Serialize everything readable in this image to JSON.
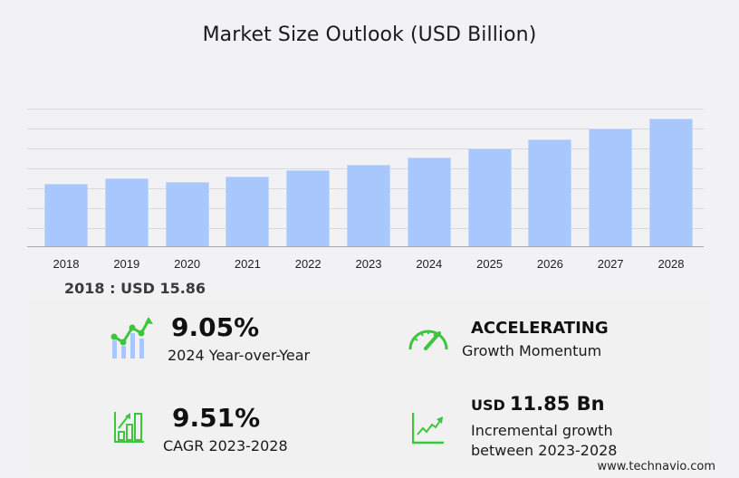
{
  "title": "Market Size Outlook (USD Billion)",
  "base_year_label": "2018 : USD  15.86",
  "stats": {
    "yoy": {
      "value": "9.05%",
      "label": "2024 Year-over-Year",
      "icon": "growth-chart-icon"
    },
    "momentum": {
      "value": "ACCELERATING",
      "label": "Growth Momentum",
      "icon": "speedometer-icon"
    },
    "cagr": {
      "value": "9.51%",
      "label": "CAGR 2023-2028",
      "icon": "bar-growth-icon"
    },
    "incremental": {
      "prefix": "USD",
      "value": "11.85 Bn",
      "label_line1": "Incremental growth",
      "label_line2": "between 2023-2028",
      "icon": "trend-line-icon"
    }
  },
  "footer": "www.technavio.com",
  "colors": {
    "bar": "#a8c8fd",
    "accent_green": "#3cc63c",
    "background": "#f2f2f4"
  },
  "chart_data": {
    "type": "bar",
    "title": "Market Size Outlook (USD Billion)",
    "xlabel": "",
    "ylabel": "USD Billion",
    "categories": [
      "2018",
      "2019",
      "2020",
      "2021",
      "2022",
      "2023",
      "2024",
      "2025",
      "2026",
      "2027",
      "2028"
    ],
    "values": [
      15.86,
      17.24,
      16.32,
      17.7,
      19.31,
      20.61,
      22.48,
      24.8,
      27.1,
      29.9,
      32.46
    ],
    "ylim": [
      0,
      35
    ],
    "grid": true,
    "y_tick_labels_visible": false,
    "legend": "none",
    "annotations": [
      "2018 : USD 15.86",
      "9.05% 2024 Year-over-Year",
      "9.51% CAGR 2023-2028",
      "USD 11.85 Bn Incremental growth between 2023-2028",
      "ACCELERATING Growth Momentum"
    ]
  }
}
